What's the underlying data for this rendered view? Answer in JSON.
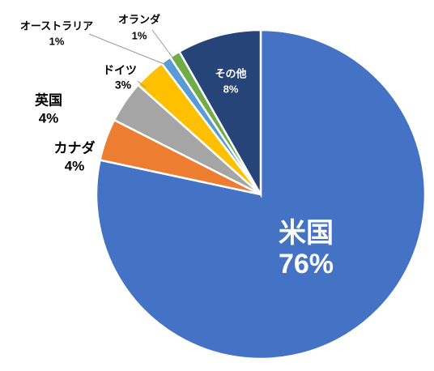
{
  "chart_data": {
    "type": "pie",
    "categories": [
      "米国",
      "カナダ",
      "英国",
      "ドイツ",
      "オーストラリア",
      "オランダ",
      "その他"
    ],
    "values": [
      76,
      4,
      4,
      3,
      1,
      1,
      8
    ],
    "value_labels": [
      "76%",
      "4%",
      "4%",
      "3%",
      "1%",
      "1%",
      "8%"
    ],
    "colors": [
      "#4472c4",
      "#ed7d31",
      "#a5a5a5",
      "#ffc000",
      "#5b9bd5",
      "#70ad47",
      "#264478"
    ]
  }
}
